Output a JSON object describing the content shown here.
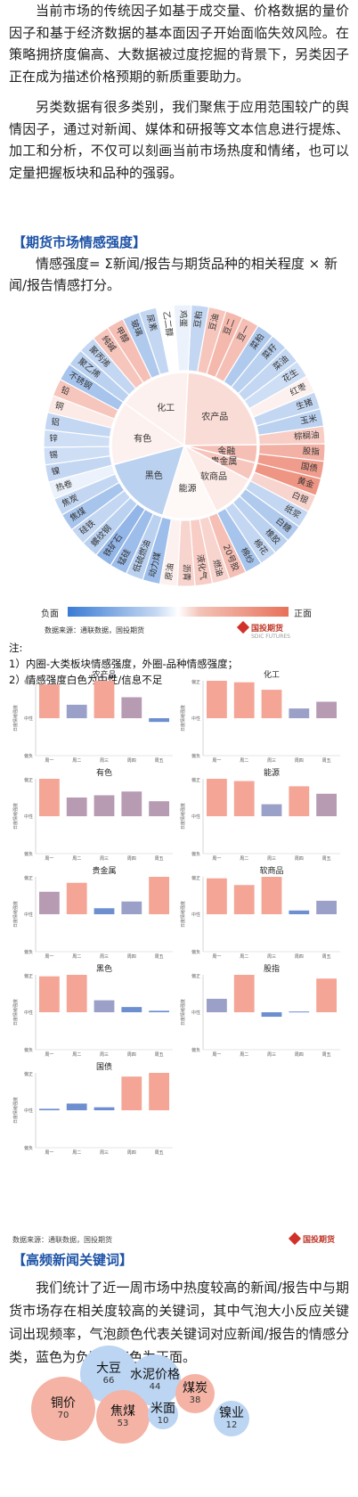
{
  "intro": {
    "p1": "当前市场的传统因子如基于成交量、价格数据的量价因子和基于经济数据的基本面因子开始面临失效风险。在策略拥挤度偏高、大数据被过度挖掘的背景下，另类因子正在成为描述价格预期的新质重要助力。",
    "p2": "另类数据有很多类别，我们聚焦于应用范围较广的舆情因子，通过对新闻、媒体和研报等文本信息进行提炼、加工和分析，不仅可以刻画当前市场热度和情绪，也可以定量把握板块和品种的强弱。"
  },
  "section1": {
    "title": "【期货市场情感强度】",
    "formula": "情感强度= Σ新闻/报告与期货品种的相关程度 × 新闻/报告情感打分。"
  },
  "chart_data": [
    {
      "type": "sunburst",
      "inner": [
        {
          "name": "化工",
          "value": 0.1
        },
        {
          "name": "农产品",
          "value": 0.25
        },
        {
          "name": "金融",
          "value": 0.45
        },
        {
          "name": "贵金属",
          "value": 0.4
        },
        {
          "name": "软商品",
          "value": 0.15
        },
        {
          "name": "能源",
          "value": 0.05
        },
        {
          "name": "黑色",
          "value": -0.35
        },
        {
          "name": "有色",
          "value": 0.1
        }
      ],
      "outer": [
        {
          "name": "豆粕",
          "value": -0.3
        },
        {
          "name": "豆油",
          "value": 0.4
        },
        {
          "name": "豆二",
          "value": 0.5
        },
        {
          "name": "豆一",
          "value": 0.45
        },
        {
          "name": "菜粕",
          "value": -0.4
        },
        {
          "name": "菜籽",
          "value": -0.35
        },
        {
          "name": "菜油",
          "value": -0.3
        },
        {
          "name": "花生",
          "value": -0.25
        },
        {
          "name": "红枣",
          "value": 0.1
        },
        {
          "name": "生猪",
          "value": -0.3
        },
        {
          "name": "玉米",
          "value": -0.35
        },
        {
          "name": "棕榈油",
          "value": 0.35
        },
        {
          "name": "股指",
          "value": 0.55
        },
        {
          "name": "国债",
          "value": 0.7
        },
        {
          "name": "黄金",
          "value": 0.75
        },
        {
          "name": "白银",
          "value": 0.3
        },
        {
          "name": "纸浆",
          "value": -0.3
        },
        {
          "name": "白糖",
          "value": -0.4
        },
        {
          "name": "橡胶",
          "value": -0.35
        },
        {
          "name": "棉花",
          "value": -0.3
        },
        {
          "name": "棉纱",
          "value": -0.45
        },
        {
          "name": "20号胶",
          "value": 0.45
        },
        {
          "name": "燃油",
          "value": 0.3
        },
        {
          "name": "液化气",
          "value": 0.35
        },
        {
          "name": "沥青",
          "value": 0.3
        },
        {
          "name": "原油",
          "value": 0.1
        },
        {
          "name": "动力煤",
          "value": -0.5
        },
        {
          "name": "低硫燃油",
          "value": -0.35
        },
        {
          "name": "锰硅",
          "value": -0.5
        },
        {
          "name": "铁矿石",
          "value": -0.55
        },
        {
          "name": "螺纹钢",
          "value": -0.35
        },
        {
          "name": "硅铁",
          "value": -0.3
        },
        {
          "name": "焦煤",
          "value": -0.45
        },
        {
          "name": "焦炭",
          "value": -0.3
        },
        {
          "name": "热卷",
          "value": -0.1
        },
        {
          "name": "镍",
          "value": -0.3
        },
        {
          "name": "锡",
          "value": -0.25
        },
        {
          "name": "锌",
          "value": -0.25
        },
        {
          "name": "铝",
          "value": -0.3
        },
        {
          "name": "铜",
          "value": 0.15
        },
        {
          "name": "铅",
          "value": 0.4
        },
        {
          "name": "不锈钢",
          "value": -0.45
        },
        {
          "name": "聚乙烯",
          "value": -0.35
        },
        {
          "name": "聚丙烯",
          "value": -0.3
        },
        {
          "name": "纯碱",
          "value": 0.4
        },
        {
          "name": "甲醇",
          "value": 0.45
        },
        {
          "name": "玻璃",
          "value": -0.4
        },
        {
          "name": "尿素",
          "value": -0.3
        },
        {
          "name": "乙二醇",
          "value": 0.0
        },
        {
          "name": "鸡蛋",
          "value": -0.1
        }
      ],
      "legend": {
        "neg": "负面",
        "pos": "正面"
      },
      "source": "数据来源：通联数据，国投期货"
    },
    {
      "type": "bar-grid",
      "xlabels": [
        "周一",
        "周二",
        "周三",
        "周四",
        "周五"
      ],
      "ylabel": "日度情绪强度",
      "ticks": {
        "top": "偏正",
        "mid": "中性",
        "bottom": "偏负"
      },
      "panels": [
        {
          "title": "农产品",
          "values": [
            0.45,
            0.18,
            0.5,
            0.28,
            -0.05
          ]
        },
        {
          "title": "化工",
          "values": [
            0.5,
            0.48,
            0.38,
            0.13,
            0.22
          ]
        },
        {
          "title": "有色",
          "values": [
            0.5,
            0.25,
            0.28,
            0.33,
            0.2
          ]
        },
        {
          "title": "能源",
          "values": [
            0.5,
            0.47,
            0.16,
            0.4,
            0.3
          ]
        },
        {
          "title": "贵金属",
          "values": [
            0.3,
            0.42,
            0.08,
            0.17,
            0.5
          ]
        },
        {
          "title": "软商品",
          "values": [
            0.48,
            0.39,
            0.5,
            0.05,
            0.18
          ]
        },
        {
          "title": "黑色",
          "values": [
            0.48,
            0.5,
            0.16,
            0.07,
            0.02
          ]
        },
        {
          "title": "股指",
          "values": [
            0.18,
            0.5,
            -0.06,
            0.01,
            0.45
          ]
        },
        {
          "title": "国债",
          "values": [
            0.02,
            0.09,
            0.04,
            0.45,
            0.5
          ]
        }
      ],
      "source": "数据来源：通联数据，国投期货"
    }
  ],
  "notes": {
    "label": "注:",
    "n1": "1）内圈-大类板块情感强度，外圈-品种情感强度；",
    "n2": "2）情感强度白色为中性/信息不足"
  },
  "logo_text": "国投期货",
  "logo_sub": "SDIC FUTURES",
  "section2": {
    "title": "【高频新闻关键词】",
    "p": "我们统计了近一周市场中热度较高的新闻/报告中与期货市场存在相关度较高的关键词，其中气泡大小反应关键词出现频率，气泡颜色代表关键词对应新闻/报告的情感分类，蓝色为负面，红色为正面。"
  },
  "bubbles": [
    {
      "kw": "大豆",
      "count": "66",
      "tone": "neg"
    },
    {
      "kw": "水泥价格",
      "count": "44",
      "tone": "neg"
    },
    {
      "kw": "煤炭",
      "count": "38",
      "tone": "pos"
    },
    {
      "kw": "铜价",
      "count": "70",
      "tone": "pos"
    },
    {
      "kw": "焦煤",
      "count": "53",
      "tone": "pos"
    },
    {
      "kw": "米面",
      "count": "10",
      "tone": "neg"
    },
    {
      "kw": "镍业",
      "count": "12",
      "tone": "neg"
    }
  ],
  "colors": {
    "accent": "#1d52a6",
    "neg": "#3a7bd5",
    "pos": "#e8715a"
  }
}
